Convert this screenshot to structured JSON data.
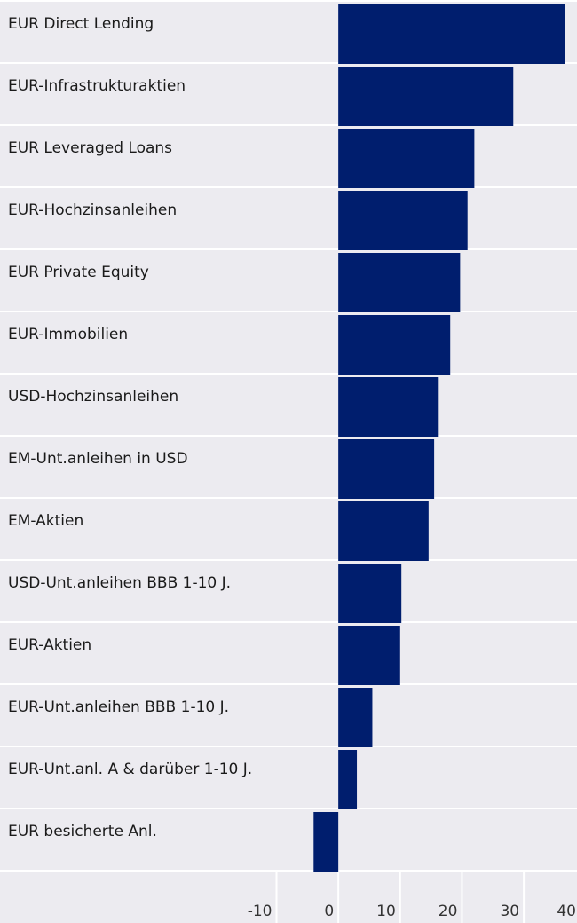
{
  "chart_data": {
    "type": "barh",
    "categories": [
      "EUR Direct Lending",
      "EUR-Infrastrukturaktien",
      "EUR Leveraged Loans",
      "EUR-Hochzinsanleihen",
      "EUR Private Equity",
      "EUR-Immobilien",
      "USD-Hochzinsanleihen",
      "EM-Unt.anleihen in USD",
      "EM-Aktien",
      "USD-Unt.anleihen BBB 1-10 J.",
      "EUR-Aktien",
      "EUR-Unt.anleihen BBB 1-10 J.",
      "EUR-Unt.anl. A & darüber 1-10 J.",
      "EUR besicherte Anl."
    ],
    "values": [
      36.7,
      28.3,
      22.0,
      20.9,
      19.7,
      18.1,
      16.1,
      15.5,
      14.6,
      10.2,
      10.0,
      5.5,
      3.0,
      -4.0
    ],
    "color": "#001e6e",
    "xlim": [
      -10,
      38.6
    ],
    "xticks": [
      -10,
      0,
      10,
      20,
      30,
      40
    ]
  }
}
